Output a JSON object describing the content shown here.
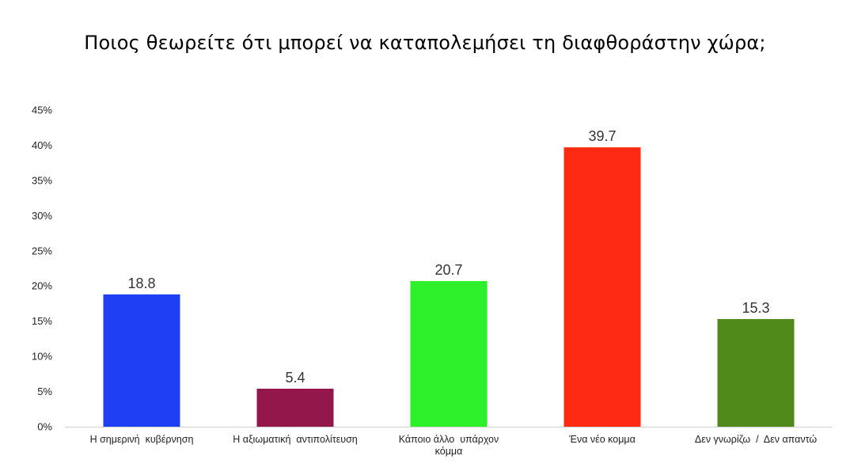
{
  "chart_data": {
    "type": "bar",
    "title": "Ποιος θεωρείτε ότι μπορεί να καταπολεμήσει τη διαφθοράστην χώρα;",
    "xlabel": "",
    "ylabel": "",
    "categories": [
      [
        "Η σημερινή  κυβέρνηση"
      ],
      [
        "Η αξιωματική  αντιπολίτευση"
      ],
      [
        "Κάποιο άλλο  υπάρχον",
        "κόμμα"
      ],
      [
        "Ένα νέο κομμα"
      ],
      [
        "Δεν γνωρίζω  /  Δεν απαντώ"
      ]
    ],
    "values": [
      18.8,
      5.4,
      20.7,
      39.7,
      15.3
    ],
    "data_labels": [
      "18.8",
      "5.4",
      "20.7",
      "39.7",
      "15.3"
    ],
    "colors": [
      "#1f3ff5",
      "#93174b",
      "#2ef02a",
      "#ff2a12",
      "#4f8a1a"
    ],
    "ylim": [
      0,
      45
    ],
    "yticks": [
      0,
      5,
      10,
      15,
      20,
      25,
      30,
      35,
      40,
      45
    ],
    "ytick_labels": [
      "0%",
      "5%",
      "10%",
      "15%",
      "20%",
      "25%",
      "30%",
      "35%",
      "40%",
      "45%"
    ],
    "grid": false,
    "legend": "none"
  }
}
